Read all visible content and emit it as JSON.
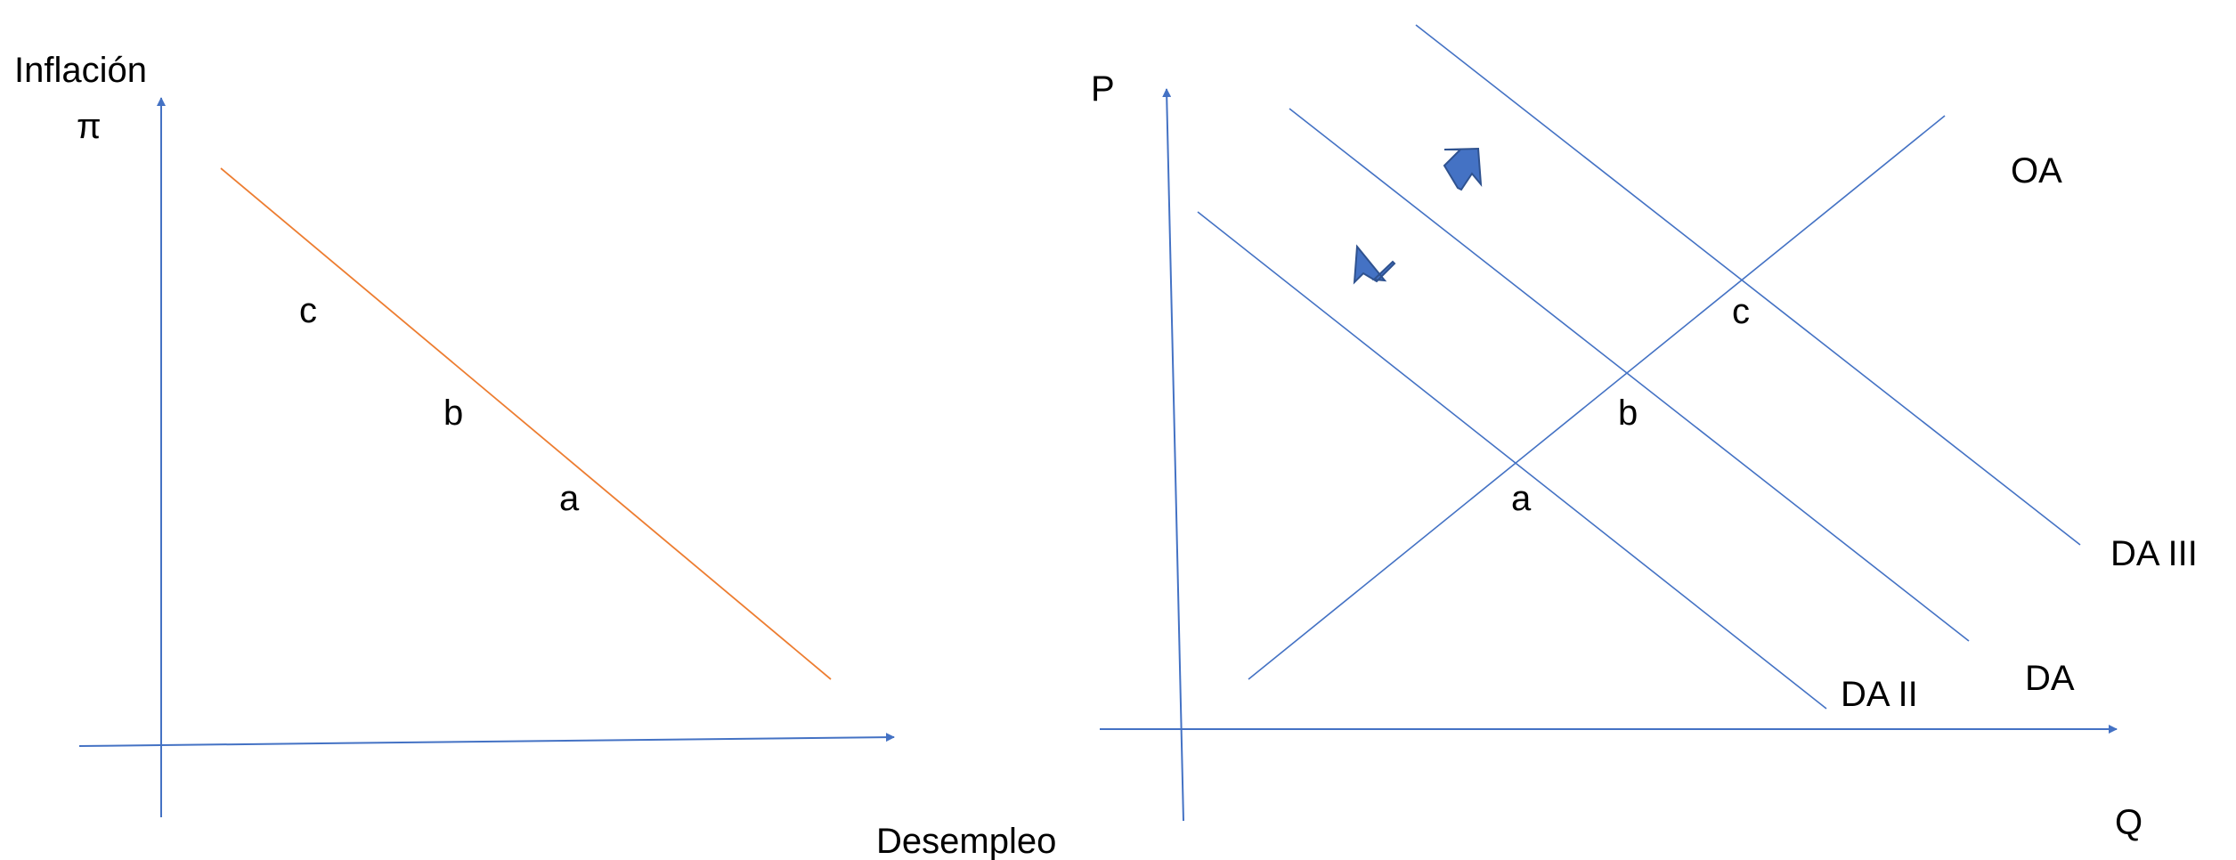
{
  "colors": {
    "axis": "#4472C4",
    "curve": "#4472C4",
    "phillips_curve": "#ED7D31",
    "shift_arrow": "#4472C4",
    "text": "#000000"
  },
  "left_diagram": {
    "y_axis_label": "Inflación",
    "y_axis_symbol": "π",
    "x_axis_label": "Desempleo",
    "points": {
      "c": "c",
      "b": "b",
      "a": "a"
    }
  },
  "right_diagram": {
    "y_axis_label": "P",
    "x_axis_label": "Q",
    "supply_label": "OA",
    "demand_labels": {
      "da": "DA",
      "da2": "DA II",
      "da3": "DA III"
    },
    "points": {
      "a": "a",
      "b": "b",
      "c": "c"
    },
    "shift_icons": [
      "arrow-up-right-icon",
      "arrow-down-left-icon"
    ]
  }
}
